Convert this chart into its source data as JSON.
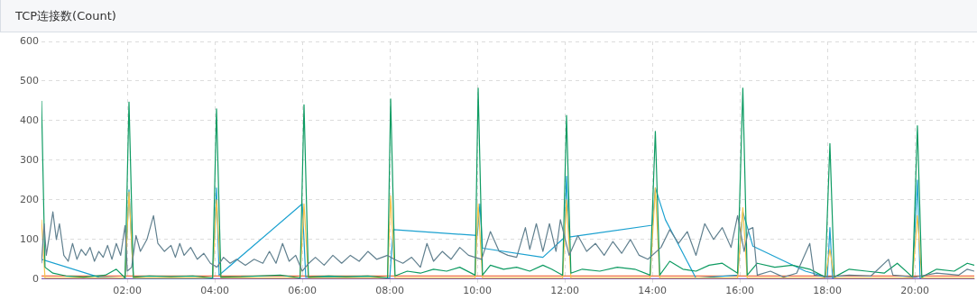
{
  "chart_data": {
    "type": "line",
    "title": "TCP连接数(Count)",
    "xlim": [
      0.04,
      21.36
    ],
    "xticks": [
      {
        "value": 2,
        "label": "02:00"
      },
      {
        "value": 4,
        "label": "04:00"
      },
      {
        "value": 6,
        "label": "06:00"
      },
      {
        "value": 8,
        "label": "08:00"
      },
      {
        "value": 10,
        "label": "10:00"
      },
      {
        "value": 12,
        "label": "12:00"
      },
      {
        "value": 14,
        "label": "14:00"
      },
      {
        "value": 16,
        "label": "16:00"
      },
      {
        "value": 18,
        "label": "18:00"
      },
      {
        "value": 20,
        "label": "20:00"
      }
    ],
    "ylim": [
      0,
      600
    ],
    "yticks": [
      0,
      100,
      200,
      300,
      400,
      500,
      600
    ],
    "grid": true,
    "marker": "none",
    "line_style": "solid",
    "legend": false,
    "series": [
      {
        "color": "#61808f",
        "x": [
          0.04,
          0.1,
          0.15,
          0.22,
          0.3,
          0.38,
          0.45,
          0.55,
          0.65,
          0.75,
          0.85,
          0.95,
          1.05,
          1.15,
          1.25,
          1.35,
          1.45,
          1.55,
          1.65,
          1.75,
          1.85,
          1.95,
          2.0,
          2.1,
          2.2,
          2.3,
          2.45,
          2.6,
          2.7,
          2.85,
          3.0,
          3.1,
          3.2,
          3.3,
          3.45,
          3.6,
          3.75,
          3.9,
          4.05,
          4.2,
          4.35,
          4.5,
          4.7,
          4.9,
          5.1,
          5.25,
          5.4,
          5.55,
          5.7,
          5.85,
          6.0,
          6.15,
          6.3,
          6.5,
          6.7,
          6.9,
          7.1,
          7.3,
          7.5,
          7.7,
          7.95,
          8.1,
          8.3,
          8.5,
          8.7,
          8.85,
          9.0,
          9.2,
          9.4,
          9.6,
          9.8,
          10.1,
          10.3,
          10.5,
          10.7,
          10.9,
          11.1,
          11.2,
          11.35,
          11.5,
          11.65,
          11.8,
          11.9,
          12.1,
          12.3,
          12.5,
          12.7,
          12.9,
          13.1,
          13.3,
          13.5,
          13.7,
          13.9,
          14.2,
          14.4,
          14.6,
          14.8,
          15.0,
          15.2,
          15.4,
          15.6,
          15.8,
          15.95,
          16.1,
          16.2,
          16.3,
          16.4,
          16.7,
          17.0,
          17.3,
          17.6,
          17.7,
          18.0,
          18.5,
          19.0,
          19.4,
          19.5,
          20.0,
          20.5,
          21.0,
          21.2,
          21.36
        ],
        "values": [
          40,
          140,
          60,
          110,
          170,
          100,
          140,
          60,
          45,
          90,
          50,
          75,
          60,
          80,
          45,
          70,
          55,
          85,
          50,
          90,
          60,
          135,
          20,
          30,
          110,
          70,
          100,
          160,
          90,
          70,
          85,
          55,
          90,
          60,
          80,
          50,
          65,
          40,
          30,
          55,
          40,
          50,
          35,
          50,
          40,
          70,
          40,
          90,
          45,
          60,
          20,
          40,
          55,
          35,
          60,
          40,
          60,
          45,
          70,
          50,
          60,
          50,
          40,
          55,
          30,
          90,
          45,
          70,
          50,
          80,
          60,
          50,
          120,
          70,
          60,
          55,
          130,
          75,
          140,
          70,
          140,
          70,
          150,
          60,
          110,
          70,
          90,
          60,
          95,
          65,
          100,
          60,
          50,
          80,
          125,
          90,
          120,
          60,
          140,
          100,
          130,
          80,
          160,
          70,
          125,
          130,
          10,
          20,
          5,
          15,
          90,
          10,
          5,
          10,
          8,
          50,
          10,
          5,
          15,
          10,
          25,
          20
        ]
      },
      {
        "color": "#0e9b62",
        "x": [
          0.04,
          0.12,
          0.3,
          0.6,
          1.0,
          1.5,
          1.75,
          1.95,
          2.04,
          2.14,
          2.5,
          3.0,
          3.5,
          3.95,
          4.04,
          4.14,
          4.6,
          5.0,
          5.5,
          5.95,
          6.04,
          6.14,
          6.6,
          7.0,
          7.5,
          7.95,
          8.02,
          8.12,
          8.4,
          8.7,
          9.0,
          9.3,
          9.6,
          9.95,
          10.02,
          10.12,
          10.3,
          10.6,
          10.9,
          11.2,
          11.5,
          11.7,
          11.95,
          12.04,
          12.14,
          12.4,
          12.8,
          13.2,
          13.6,
          13.95,
          14.07,
          14.17,
          14.4,
          14.7,
          15.0,
          15.3,
          15.6,
          15.95,
          16.07,
          16.17,
          16.4,
          16.8,
          17.2,
          17.6,
          17.95,
          18.06,
          18.16,
          18.5,
          18.9,
          19.3,
          19.6,
          19.95,
          20.06,
          20.16,
          20.5,
          20.9,
          21.2,
          21.36
        ],
        "values": [
          450,
          30,
          15,
          8,
          5,
          10,
          25,
          3,
          447,
          5,
          8,
          6,
          8,
          3,
          430,
          5,
          6,
          8,
          10,
          3,
          440,
          5,
          8,
          6,
          8,
          3,
          455,
          8,
          20,
          15,
          25,
          20,
          30,
          10,
          482,
          10,
          35,
          25,
          30,
          20,
          35,
          25,
          10,
          413,
          15,
          25,
          20,
          30,
          25,
          10,
          373,
          10,
          45,
          25,
          20,
          35,
          40,
          15,
          482,
          10,
          40,
          30,
          35,
          25,
          5,
          342,
          5,
          25,
          20,
          15,
          40,
          5,
          387,
          5,
          25,
          20,
          40,
          35
        ]
      },
      {
        "color": "#f7c24a",
        "x": [
          0.04,
          0.12,
          1.95,
          2.04,
          2.14,
          3.95,
          4.04,
          4.14,
          5.95,
          6.04,
          6.14,
          7.95,
          8.02,
          8.12,
          9.95,
          10.02,
          10.12,
          11.95,
          12.04,
          12.14,
          13.95,
          14.07,
          14.17,
          15.95,
          16.07,
          16.17,
          17.95,
          18.06,
          18.16,
          19.95,
          20.06,
          20.16,
          21.36
        ],
        "values": [
          150,
          3,
          3,
          220,
          3,
          3,
          200,
          3,
          3,
          190,
          3,
          3,
          210,
          3,
          3,
          190,
          3,
          3,
          200,
          3,
          3,
          230,
          3,
          3,
          180,
          3,
          3,
          75,
          3,
          3,
          160,
          3,
          3
        ]
      },
      {
        "color": "#1ba1d0",
        "x": [
          0.04,
          1.35,
          1.95,
          2.04,
          2.14,
          3.95,
          4.04,
          4.1,
          6.0,
          6.08,
          8.0,
          8.08,
          10.0,
          10.06,
          10.12,
          11.5,
          12.0,
          12.04,
          12.1,
          14.0,
          14.07,
          14.3,
          15.0,
          15.95,
          16.07,
          16.3,
          17.5,
          18.0,
          18.06,
          18.12,
          19.95,
          20.06,
          20.12,
          21.36
        ],
        "values": [
          50,
          5,
          2,
          225,
          2,
          2,
          230,
          10,
          190,
          5,
          3,
          125,
          110,
          190,
          78,
          55,
          106,
          260,
          106,
          136,
          230,
          150,
          2,
          10,
          170,
          83,
          20,
          5,
          130,
          3,
          3,
          250,
          3,
          3
        ]
      },
      {
        "color": "#f26d3d",
        "x": [
          0.04,
          21.36
        ],
        "values": [
          8,
          8
        ]
      },
      {
        "color": "#6b3fa0",
        "x": [
          0.04,
          21.36
        ],
        "values": [
          1,
          1
        ]
      }
    ]
  }
}
